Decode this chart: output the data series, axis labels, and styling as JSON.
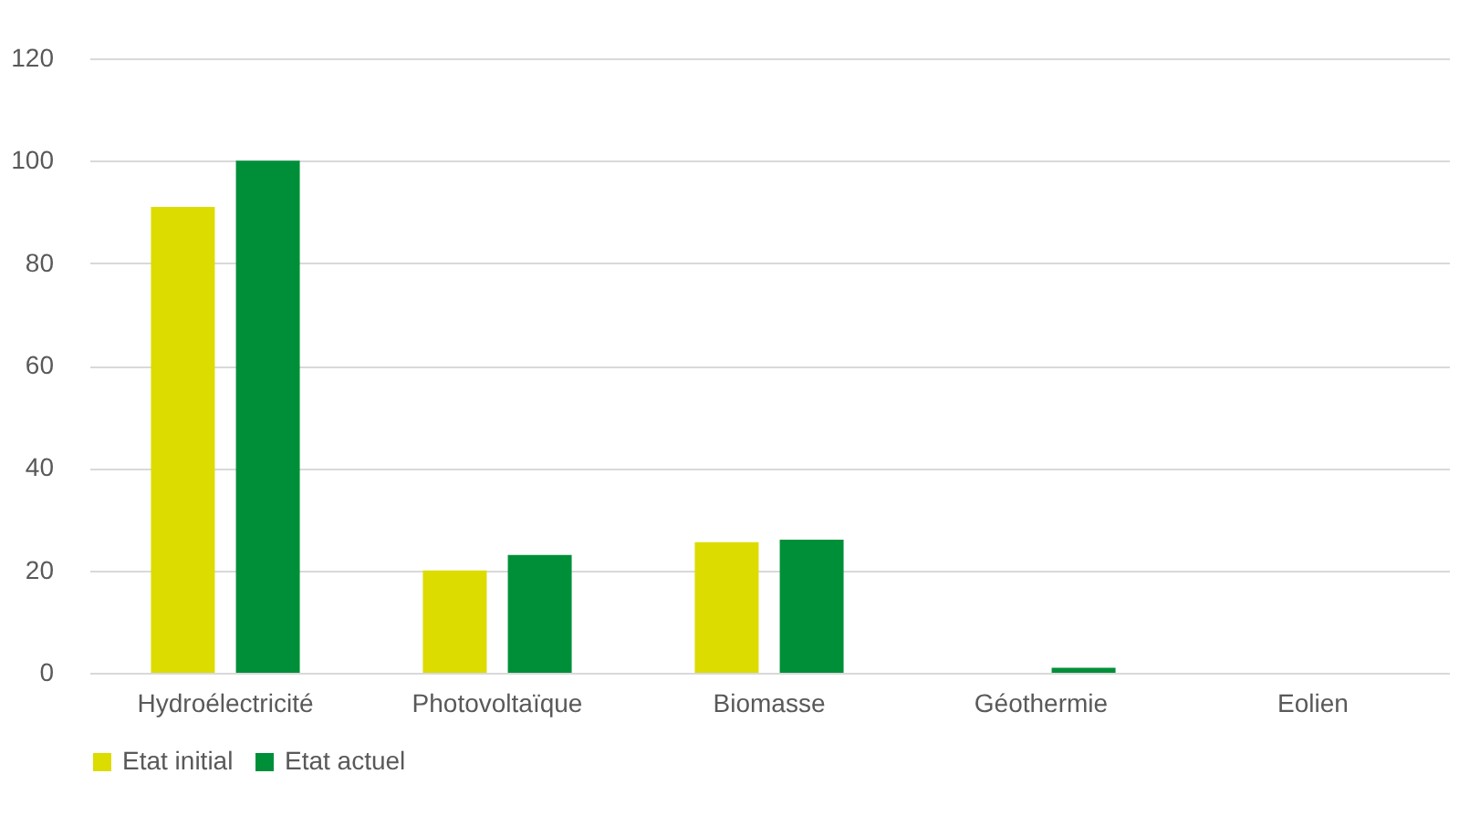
{
  "chart_data": {
    "type": "bar",
    "categories": [
      "Hydroélectricité",
      "Photovoltaïque",
      "Biomasse",
      "Géothermie",
      "Eolien"
    ],
    "series": [
      {
        "name": "Etat initial",
        "color": "#dcdc00",
        "values": [
          91,
          20,
          25.5,
          0,
          0
        ]
      },
      {
        "name": "Etat actuel",
        "color": "#008f39",
        "values": [
          100,
          23,
          26,
          1,
          0
        ]
      }
    ],
    "ylim": [
      0,
      120
    ],
    "yticks": [
      0,
      20,
      40,
      60,
      80,
      100,
      120
    ],
    "grid": "y",
    "legend": "bottom"
  }
}
